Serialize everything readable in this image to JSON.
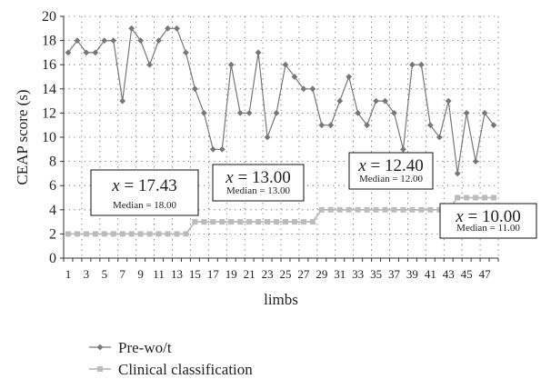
{
  "chart_data": {
    "type": "line",
    "xlabel": "limbs",
    "ylabel": "CEAP score (s)",
    "ylim": [
      0,
      20
    ],
    "yticks": [
      0,
      2,
      4,
      6,
      8,
      10,
      12,
      14,
      16,
      18,
      20
    ],
    "x": [
      1,
      2,
      3,
      4,
      5,
      6,
      7,
      8,
      9,
      10,
      11,
      12,
      13,
      14,
      15,
      16,
      17,
      18,
      19,
      20,
      21,
      22,
      23,
      24,
      25,
      26,
      27,
      28,
      29,
      30,
      31,
      32,
      33,
      34,
      35,
      36,
      37,
      38,
      39,
      40,
      41,
      42,
      43,
      44,
      45,
      46,
      47,
      48
    ],
    "xtick_labels": [
      "1",
      "3",
      "5",
      "7",
      "9",
      "11",
      "13",
      "15",
      "17",
      "19",
      "21",
      "23",
      "25",
      "27",
      "29",
      "31",
      "33",
      "35",
      "37",
      "39",
      "41",
      "43",
      "45",
      "47"
    ],
    "grid": "dotted",
    "legend_position": "bottom",
    "series": [
      {
        "name": "Pre-wo/t",
        "color": "#777777",
        "marker": "diamond",
        "values": [
          17,
          18,
          17,
          17,
          18,
          18,
          13,
          19,
          18,
          16,
          18,
          19,
          19,
          17,
          14,
          12,
          9,
          9,
          16,
          12,
          12,
          17,
          10,
          12,
          16,
          15,
          14,
          14,
          11,
          11,
          13,
          15,
          12,
          11,
          13,
          13,
          12,
          9,
          16,
          16,
          11,
          10,
          13,
          7,
          12,
          8,
          12,
          11
        ]
      },
      {
        "name": "Clinical classification",
        "color": "#bbbbbb",
        "marker": "square",
        "values": [
          2,
          2,
          2,
          2,
          2,
          2,
          2,
          2,
          2,
          2,
          2,
          2,
          2,
          2,
          3,
          3,
          3,
          3,
          3,
          3,
          3,
          3,
          3,
          3,
          3,
          3,
          3,
          3,
          4,
          4,
          4,
          4,
          4,
          4,
          4,
          4,
          4,
          4,
          4,
          4,
          4,
          4,
          4,
          5,
          5,
          5,
          5,
          5
        ]
      }
    ],
    "annotations": [
      {
        "mean": "x = 17.43",
        "median": "Median = 18.00"
      },
      {
        "mean": "x = 13.00",
        "median": "Median = 13.00"
      },
      {
        "mean": "x = 12.40",
        "median": "Median = 12.00"
      },
      {
        "mean": "x = 10.00",
        "median": "Median = 11.00"
      }
    ]
  }
}
